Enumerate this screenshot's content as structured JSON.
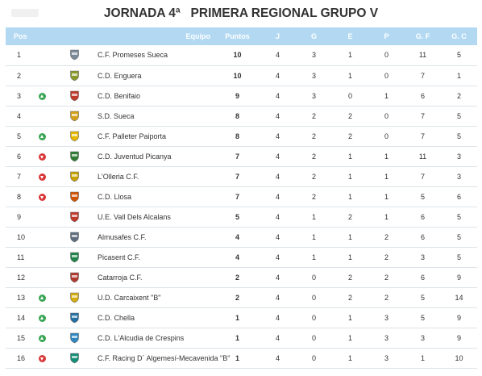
{
  "title": "JORNADA 4ª   PRIMERA REGIONAL GRUPO V",
  "columns": {
    "pos": "Pos",
    "team": "Equipo",
    "points": "Puntos",
    "played": "J",
    "won": "G",
    "drawn": "E",
    "lost": "P",
    "goals_for": "G. F",
    "goals_against": "G. C"
  },
  "rows": [
    {
      "pos": "1",
      "trend": "none",
      "shield": "promeses-sueca-crest",
      "shield_color": "#7a8a99",
      "team": "C.F. Promeses Sueca",
      "points": "10",
      "played": "4",
      "won": "3",
      "drawn": "1",
      "lost": "0",
      "goals_for": "11",
      "goals_against": "5"
    },
    {
      "pos": "2",
      "trend": "none",
      "shield": "enguera-crest",
      "shield_color": "#8a9a2a",
      "team": "C.D. Enguera",
      "points": "10",
      "played": "4",
      "won": "3",
      "drawn": "1",
      "lost": "0",
      "goals_for": "7",
      "goals_against": "1"
    },
    {
      "pos": "3",
      "trend": "up",
      "shield": "benifaio-crest",
      "shield_color": "#c0392b",
      "team": "C.D. Benifaio",
      "points": "9",
      "played": "4",
      "won": "3",
      "drawn": "0",
      "lost": "1",
      "goals_for": "6",
      "goals_against": "2"
    },
    {
      "pos": "4",
      "trend": "none",
      "shield": "sueca-crest",
      "shield_color": "#d4a017",
      "team": "S.D. Sueca",
      "points": "8",
      "played": "4",
      "won": "2",
      "drawn": "2",
      "lost": "0",
      "goals_for": "7",
      "goals_against": "5"
    },
    {
      "pos": "5",
      "trend": "up",
      "shield": "palleter-crest",
      "shield_color": "#e6b800",
      "team": "C.F. Palleter Paiporta",
      "points": "8",
      "played": "4",
      "won": "2",
      "drawn": "2",
      "lost": "0",
      "goals_for": "7",
      "goals_against": "5"
    },
    {
      "pos": "6",
      "trend": "down",
      "shield": "picanya-crest",
      "shield_color": "#2e7d32",
      "team": "C.D. Juventud Picanya",
      "points": "7",
      "played": "4",
      "won": "2",
      "drawn": "1",
      "lost": "1",
      "goals_for": "11",
      "goals_against": "3"
    },
    {
      "pos": "7",
      "trend": "down",
      "shield": "olleria-crest",
      "shield_color": "#c8a200",
      "team": "L'Olleria C.F.",
      "points": "7",
      "played": "4",
      "won": "2",
      "drawn": "1",
      "lost": "1",
      "goals_for": "7",
      "goals_against": "3"
    },
    {
      "pos": "8",
      "trend": "down",
      "shield": "llosa-crest",
      "shield_color": "#d35400",
      "team": "C.D. Llosa",
      "points": "7",
      "played": "4",
      "won": "2",
      "drawn": "1",
      "lost": "1",
      "goals_for": "5",
      "goals_against": "6"
    },
    {
      "pos": "9",
      "trend": "none",
      "shield": "alcalans-crest",
      "shield_color": "#c0392b",
      "team": "U.E. Vall Dels Alcalans",
      "points": "5",
      "played": "4",
      "won": "1",
      "drawn": "2",
      "lost": "1",
      "goals_for": "6",
      "goals_against": "5"
    },
    {
      "pos": "10",
      "trend": "none",
      "shield": "almussafes-crest",
      "shield_color": "#5d6d7e",
      "team": "Almusafes C.F.",
      "points": "4",
      "played": "4",
      "won": "1",
      "drawn": "1",
      "lost": "2",
      "goals_for": "6",
      "goals_against": "5"
    },
    {
      "pos": "11",
      "trend": "none",
      "shield": "picassent-crest",
      "shield_color": "#1e8449",
      "team": "Picasent C.F.",
      "points": "4",
      "played": "4",
      "won": "1",
      "drawn": "1",
      "lost": "2",
      "goals_for": "3",
      "goals_against": "5"
    },
    {
      "pos": "12",
      "trend": "none",
      "shield": "catarroja-crest",
      "shield_color": "#b03a2e",
      "team": "Catarroja C.F.",
      "points": "2",
      "played": "4",
      "won": "0",
      "drawn": "2",
      "lost": "2",
      "goals_for": "6",
      "goals_against": "9"
    },
    {
      "pos": "13",
      "trend": "up",
      "shield": "carcaixent-crest",
      "shield_color": "#d4ac0d",
      "team": "U.D. Carcaixent \"B\"",
      "points": "2",
      "played": "4",
      "won": "0",
      "drawn": "2",
      "lost": "2",
      "goals_for": "5",
      "goals_against": "14"
    },
    {
      "pos": "14",
      "trend": "up",
      "shield": "chella-crest",
      "shield_color": "#2471a3",
      "team": "C.D. Chella",
      "points": "1",
      "played": "4",
      "won": "0",
      "drawn": "1",
      "lost": "3",
      "goals_for": "5",
      "goals_against": "9"
    },
    {
      "pos": "15",
      "trend": "up",
      "shield": "crespins-crest",
      "shield_color": "#2e86c1",
      "team": "C.D. L'Alcudia de Crespins",
      "points": "1",
      "played": "4",
      "won": "0",
      "drawn": "1",
      "lost": "3",
      "goals_for": "3",
      "goals_against": "9"
    },
    {
      "pos": "16",
      "trend": "down",
      "shield": "algemesi-crest",
      "shield_color": "#148f77",
      "team": "C.F. Racing D´ Algemesí-Mecavenida \"B\"",
      "points": "1",
      "played": "4",
      "won": "0",
      "drawn": "1",
      "lost": "3",
      "goals_for": "1",
      "goals_against": "10"
    }
  ]
}
